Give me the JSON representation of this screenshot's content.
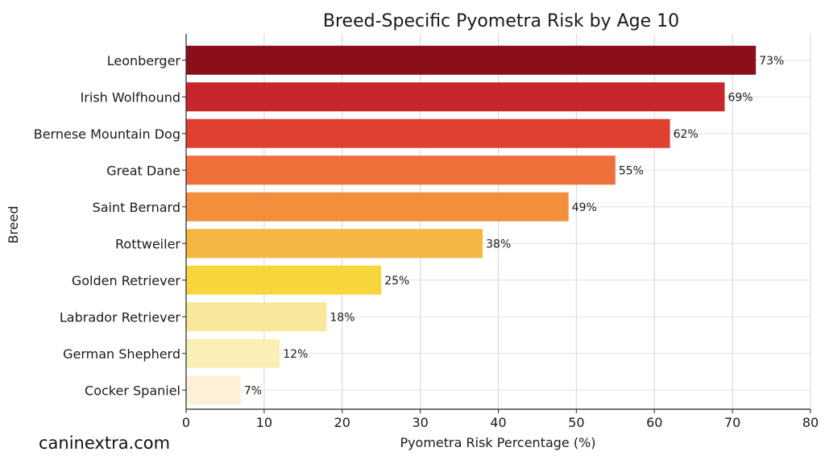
{
  "watermark": "caninextra.com",
  "chart_data": {
    "type": "bar",
    "orientation": "horizontal",
    "title": "Breed-Specific Pyometra Risk by Age 10",
    "xlabel": "Pyometra Risk Percentage (%)",
    "ylabel": "Breed",
    "xlim": [
      0,
      80
    ],
    "xticks": [
      0,
      10,
      20,
      30,
      40,
      50,
      60,
      70,
      80
    ],
    "grid": true,
    "categories": [
      "Leonberger",
      "Irish Wolfhound",
      "Bernese Mountain Dog",
      "Great Dane",
      "Saint Bernard",
      "Rottweiler",
      "Golden Retriever",
      "Labrador Retriever",
      "German Shepherd",
      "Cocker Spaniel"
    ],
    "values": [
      73,
      69,
      62,
      55,
      49,
      38,
      25,
      18,
      12,
      7
    ],
    "data_labels": [
      "73%",
      "69%",
      "62%",
      "55%",
      "49%",
      "38%",
      "25%",
      "18%",
      "12%",
      "7%"
    ],
    "colors": [
      "#8b0f1a",
      "#c8262d",
      "#de4132",
      "#ee6f3a",
      "#f38f3c",
      "#f6b642",
      "#f6d63c",
      "#f8e89c",
      "#fbefb8",
      "#fdf0d7"
    ]
  }
}
